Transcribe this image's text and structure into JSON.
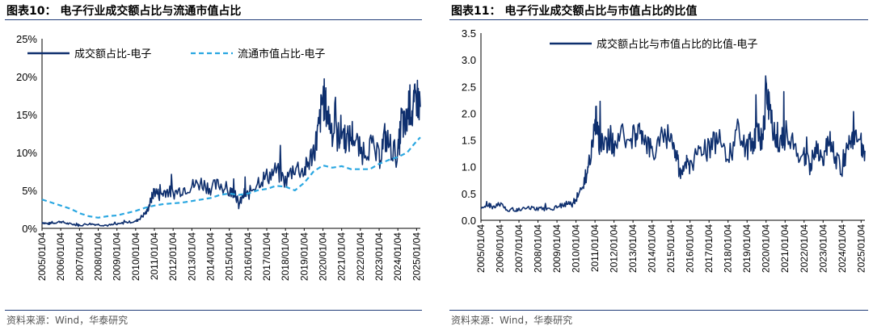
{
  "chart_data": [
    {
      "type": "line",
      "title": "图表10：  电子行业成交额占比与流通市值占比",
      "source": "资料来源：Wind，华泰研究",
      "x_ticks": [
        "2005/01/04",
        "2006/01/04",
        "2007/01/04",
        "2008/01/04",
        "2009/01/04",
        "2010/01/04",
        "2011/01/04",
        "2012/01/04",
        "2013/01/04",
        "2014/01/04",
        "2015/01/04",
        "2016/01/04",
        "2017/01/04",
        "2018/01/04",
        "2019/01/04",
        "2020/01/04",
        "2021/01/04",
        "2022/01/04",
        "2023/01/04",
        "2024/01/04",
        "2025/01/04"
      ],
      "y_ticks": [
        "0%",
        "5%",
        "10%",
        "15%",
        "20%",
        "25%"
      ],
      "ylim": [
        0,
        25
      ],
      "xlim": [
        2005.0,
        2025.2
      ],
      "legend_position": "top",
      "series": [
        {
          "name": "成交额占比-电子",
          "color": "#0e2f6e",
          "style": "solid",
          "x": [
            2005.0,
            2005.3,
            2005.6,
            2006.0,
            2006.4,
            2006.8,
            2007.0,
            2007.5,
            2008.0,
            2008.5,
            2009.0,
            2009.5,
            2010.0,
            2010.3,
            2010.6,
            2010.8,
            2011.0,
            2011.3,
            2011.6,
            2012.0,
            2012.5,
            2013.0,
            2013.5,
            2014.0,
            2014.5,
            2015.0,
            2015.3,
            2015.5,
            2015.8,
            2016.0,
            2016.5,
            2017.0,
            2017.5,
            2018.0,
            2018.5,
            2019.0,
            2019.3,
            2019.6,
            2019.8,
            2020.0,
            2020.2,
            2020.5,
            2020.8,
            2021.0,
            2021.3,
            2021.6,
            2022.0,
            2022.5,
            2023.0,
            2023.3,
            2023.6,
            2024.0,
            2024.2,
            2024.4,
            2024.6,
            2024.8,
            2025.0,
            2025.2
          ],
          "y": [
            0.8,
            0.6,
            0.7,
            0.9,
            0.6,
            0.5,
            0.4,
            0.6,
            0.5,
            0.4,
            0.5,
            0.8,
            0.9,
            1.5,
            2.2,
            3.6,
            5.0,
            4.3,
            5.0,
            4.6,
            5.2,
            5.6,
            6.0,
            5.3,
            5.8,
            4.7,
            5.0,
            3.0,
            4.5,
            4.4,
            6.2,
            6.8,
            7.6,
            6.2,
            8.2,
            7.5,
            9.0,
            11.0,
            13.5,
            17.5,
            15.5,
            13.0,
            12.0,
            13.0,
            11.5,
            12.5,
            10.0,
            11.0,
            9.2,
            12.0,
            10.8,
            9.5,
            14.5,
            13.0,
            16.5,
            15.0,
            17.5,
            16.0
          ]
        },
        {
          "name": "流通市值占比-电子",
          "color": "#2aa7e1",
          "style": "dashed",
          "x": [
            2005.0,
            2005.5,
            2006.0,
            2006.5,
            2007.0,
            2007.5,
            2008.0,
            2008.5,
            2009.0,
            2009.5,
            2010.0,
            2010.5,
            2011.0,
            2011.5,
            2012.0,
            2012.5,
            2013.0,
            2013.5,
            2014.0,
            2014.5,
            2015.0,
            2015.5,
            2016.0,
            2016.5,
            2017.0,
            2017.5,
            2018.0,
            2018.5,
            2019.0,
            2019.5,
            2020.0,
            2020.5,
            2021.0,
            2021.5,
            2022.0,
            2022.5,
            2023.0,
            2023.5,
            2024.0,
            2024.5,
            2025.0,
            2025.2
          ],
          "y": [
            3.8,
            3.4,
            3.0,
            2.6,
            2.0,
            1.6,
            1.4,
            1.6,
            1.7,
            2.0,
            2.3,
            2.7,
            3.0,
            3.2,
            3.3,
            3.4,
            3.6,
            3.8,
            4.0,
            4.4,
            4.6,
            4.4,
            4.6,
            5.0,
            5.2,
            5.6,
            5.5,
            5.0,
            6.0,
            7.5,
            8.3,
            8.0,
            8.2,
            7.8,
            7.8,
            7.8,
            8.5,
            9.0,
            9.4,
            10.0,
            11.5,
            12.0
          ]
        }
      ]
    },
    {
      "type": "line",
      "title": "图表11：  电子行业成交额占比与市值占比的比值",
      "source": "资料来源：Wind，华泰研究",
      "x_ticks": [
        "2005/01/04",
        "2006/01/04",
        "2007/01/04",
        "2008/01/04",
        "2009/01/04",
        "2010/01/04",
        "2011/01/04",
        "2012/01/04",
        "2013/01/04",
        "2014/01/04",
        "2015/01/04",
        "2016/01/04",
        "2017/01/04",
        "2018/01/04",
        "2019/01/04",
        "2020/01/04",
        "2021/01/04",
        "2022/01/04",
        "2023/01/04",
        "2024/01/04",
        "2025/01/04"
      ],
      "y_ticks": [
        "0.0",
        "0.5",
        "1.0",
        "1.5",
        "2.0",
        "2.5",
        "3.0",
        "3.5"
      ],
      "ylim": [
        0,
        3.5
      ],
      "xlim": [
        2005.0,
        2025.2
      ],
      "legend_position": "top",
      "series": [
        {
          "name": "成交额占比与市值占比的比值-电子",
          "color": "#0e2f6e",
          "style": "solid",
          "x": [
            2005.0,
            2005.3,
            2005.6,
            2006.0,
            2006.4,
            2006.8,
            2007.0,
            2007.5,
            2008.0,
            2008.5,
            2009.0,
            2009.4,
            2009.8,
            2010.0,
            2010.3,
            2010.6,
            2010.8,
            2011.0,
            2011.2,
            2011.5,
            2011.8,
            2012.0,
            2012.5,
            2013.0,
            2013.3,
            2013.6,
            2014.0,
            2014.5,
            2015.0,
            2015.3,
            2015.5,
            2015.8,
            2016.0,
            2016.5,
            2017.0,
            2017.5,
            2018.0,
            2018.5,
            2019.0,
            2019.3,
            2019.6,
            2019.8,
            2020.0,
            2020.2,
            2020.5,
            2020.8,
            2021.0,
            2021.5,
            2022.0,
            2022.3,
            2022.6,
            2023.0,
            2023.3,
            2023.6,
            2024.0,
            2024.3,
            2024.6,
            2025.0,
            2025.2
          ],
          "y": [
            0.2,
            0.3,
            0.25,
            0.3,
            0.2,
            0.2,
            0.2,
            0.25,
            0.2,
            0.2,
            0.25,
            0.3,
            0.3,
            0.4,
            0.6,
            0.9,
            1.2,
            2.0,
            1.5,
            1.3,
            1.6,
            1.4,
            1.6,
            1.5,
            1.9,
            1.4,
            1.3,
            1.6,
            1.5,
            1.2,
            0.8,
            1.1,
            1.0,
            1.4,
            1.3,
            1.6,
            1.1,
            1.7,
            1.3,
            1.5,
            1.8,
            1.4,
            2.4,
            2.1,
            1.6,
            1.5,
            1.6,
            1.4,
            1.2,
            1.0,
            1.3,
            1.1,
            1.5,
            1.2,
            1.0,
            1.3,
            1.5,
            1.4,
            1.3
          ]
        }
      ]
    }
  ]
}
